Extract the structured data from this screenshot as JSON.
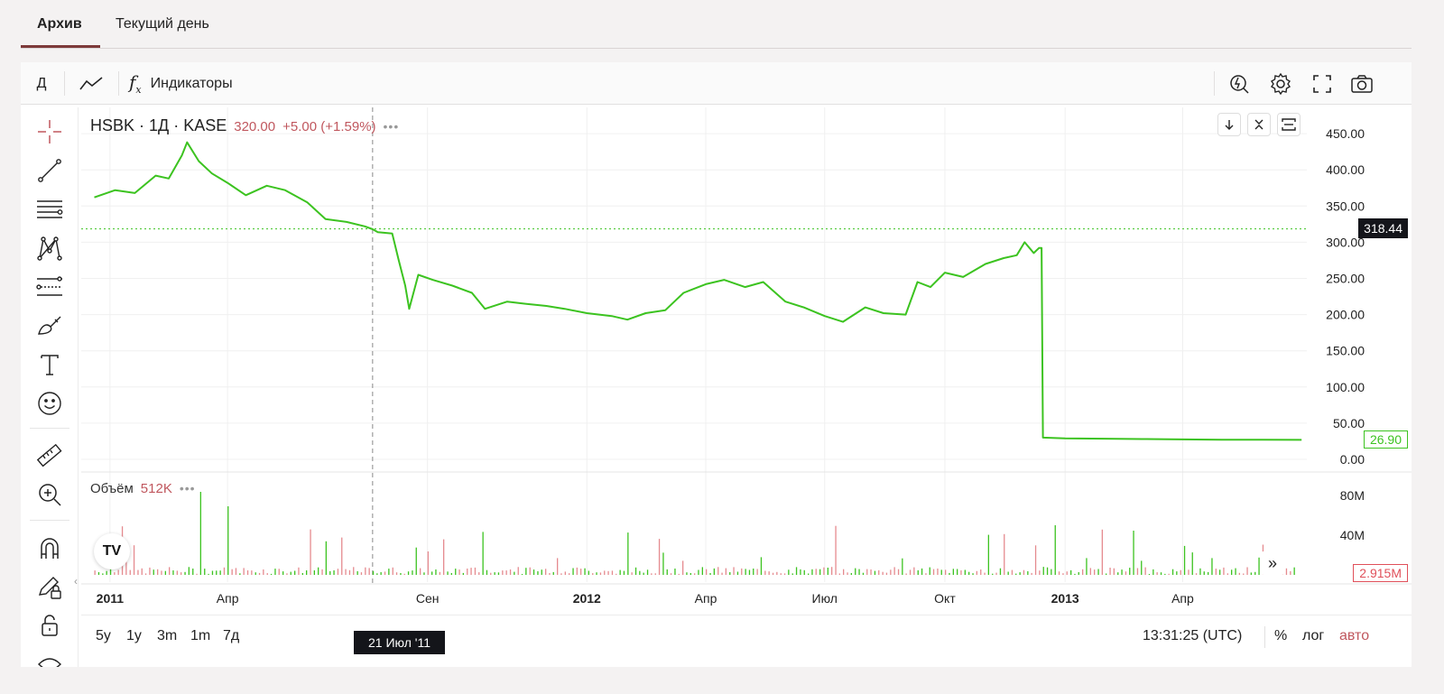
{
  "tabs": [
    {
      "label": "Архив",
      "active": true
    },
    {
      "label": "Текущий день",
      "active": false
    }
  ],
  "toolbar": {
    "interval_label": "Д",
    "chart_type_icon": "line-chart-icon",
    "indicators_label": "Индикаторы",
    "right_icons": [
      "replay-icon",
      "gear-icon",
      "fullscreen-icon",
      "camera-icon"
    ]
  },
  "left_tools": [
    "crosshair-icon",
    "trend-line-icon",
    "horizontal-lines-icon",
    "pattern-icon",
    "fib-icon",
    "brush-icon",
    "text-icon",
    "emoji-icon",
    "ruler-icon",
    "zoom-in-icon",
    "magnet-icon",
    "lock-pencil-icon",
    "lock-icon"
  ],
  "legend": {
    "symbol": "HSBK · 1Д · KASE",
    "price": "320.00",
    "change": "+5.00 (+1.59%)",
    "dots": "•••"
  },
  "volume_legend": {
    "label": "Объём",
    "value": "512K",
    "dots": "•••"
  },
  "chart_buttons": [
    "arrow-down-icon",
    "collapse-icon",
    "maximize-icon"
  ],
  "price_labels": {
    "crosshair": "318.44",
    "last": "26.90",
    "volume_last": "2.915M"
  },
  "date_tooltip": "21 Июл '11",
  "tv_logo": "TV",
  "scroll_icon": "»",
  "bottom_bar": {
    "ranges": [
      "5y",
      "1y",
      "3m",
      "1m",
      "7д"
    ],
    "time": "13:31:25 (UTC)",
    "percent": "%",
    "log": "лог",
    "auto": "авто"
  },
  "colors": {
    "line": "#3cc320",
    "up": "#3cc320",
    "down": "#e58a8f",
    "accent": "#c0575e",
    "tab_underline": "#7d3a3a"
  },
  "chart_data": {
    "type": "line",
    "title": "HSBK · 1Д · KASE",
    "y_ticks": [
      "450.00",
      "400.00",
      "350.00",
      "300.00",
      "250.00",
      "200.00",
      "150.00",
      "100.00",
      "50.00",
      "0.00"
    ],
    "ylim": [
      0,
      470
    ],
    "volume_ticks": [
      "80M",
      "40M"
    ],
    "volume_max": 100,
    "x_ticks": [
      "2011",
      "Апр",
      "Сен",
      "2012",
      "Апр",
      "Июл",
      "Окт",
      "2013",
      "Апр"
    ],
    "x_tick_dates": [
      "2011-01-01",
      "2011-04-01",
      "2011-09-01",
      "2012-01-01",
      "2012-04-01",
      "2012-07-01",
      "2012-10-01",
      "2013-01-01",
      "2013-04-01"
    ],
    "xlim": [
      "2010-12-10",
      "2013-07-05"
    ],
    "series": [
      {
        "values": [
          [
            "2010-12-20",
            362
          ],
          [
            "2011-01-05",
            372
          ],
          [
            "2011-01-20",
            368
          ],
          [
            "2011-02-05",
            392
          ],
          [
            "2011-02-15",
            388
          ],
          [
            "2011-02-25",
            420
          ],
          [
            "2011-03-01",
            438
          ],
          [
            "2011-03-10",
            412
          ],
          [
            "2011-03-20",
            395
          ],
          [
            "2011-04-01",
            382
          ],
          [
            "2011-04-15",
            365
          ],
          [
            "2011-05-01",
            378
          ],
          [
            "2011-05-15",
            372
          ],
          [
            "2011-06-01",
            355
          ],
          [
            "2011-06-15",
            332
          ],
          [
            "2011-07-01",
            328
          ],
          [
            "2011-07-15",
            322
          ],
          [
            "2011-07-21",
            318
          ],
          [
            "2011-07-25",
            314
          ],
          [
            "2011-08-05",
            312
          ],
          [
            "2011-08-10",
            275
          ],
          [
            "2011-08-15",
            240
          ],
          [
            "2011-08-18",
            208
          ],
          [
            "2011-08-25",
            255
          ],
          [
            "2011-09-05",
            248
          ],
          [
            "2011-09-20",
            240
          ],
          [
            "2011-10-05",
            230
          ],
          [
            "2011-10-15",
            208
          ],
          [
            "2011-11-01",
            218
          ],
          [
            "2011-11-15",
            215
          ],
          [
            "2011-12-01",
            212
          ],
          [
            "2011-12-15",
            208
          ],
          [
            "2012-01-01",
            202
          ],
          [
            "2012-01-20",
            198
          ],
          [
            "2012-02-01",
            193
          ],
          [
            "2012-02-15",
            202
          ],
          [
            "2012-03-01",
            206
          ],
          [
            "2012-03-15",
            230
          ],
          [
            "2012-04-01",
            242
          ],
          [
            "2012-04-15",
            248
          ],
          [
            "2012-05-01",
            238
          ],
          [
            "2012-05-15",
            245
          ],
          [
            "2012-06-01",
            218
          ],
          [
            "2012-06-15",
            210
          ],
          [
            "2012-07-01",
            198
          ],
          [
            "2012-07-15",
            190
          ],
          [
            "2012-08-01",
            210
          ],
          [
            "2012-08-15",
            202
          ],
          [
            "2012-09-01",
            200
          ],
          [
            "2012-09-10",
            245
          ],
          [
            "2012-09-20",
            238
          ],
          [
            "2012-10-01",
            258
          ],
          [
            "2012-10-15",
            252
          ],
          [
            "2012-11-01",
            270
          ],
          [
            "2012-11-15",
            278
          ],
          [
            "2012-11-25",
            282
          ],
          [
            "2012-12-01",
            300
          ],
          [
            "2012-12-08",
            285
          ],
          [
            "2012-12-12",
            292
          ],
          [
            "2012-12-14",
            292
          ],
          [
            "2012-12-15",
            30
          ],
          [
            "2013-01-01",
            29
          ],
          [
            "2013-02-01",
            28.5
          ],
          [
            "2013-03-01",
            28
          ],
          [
            "2013-04-01",
            27.5
          ],
          [
            "2013-05-01",
            27
          ],
          [
            "2013-06-01",
            27
          ],
          [
            "2013-07-01",
            26.9
          ]
        ]
      }
    ]
  }
}
